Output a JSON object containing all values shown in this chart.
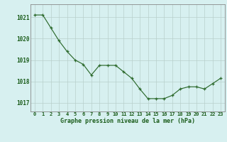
{
  "x": [
    0,
    1,
    2,
    3,
    4,
    5,
    6,
    7,
    8,
    9,
    10,
    11,
    12,
    13,
    14,
    15,
    16,
    17,
    18,
    19,
    20,
    21,
    22,
    23
  ],
  "y": [
    1021.1,
    1021.1,
    1020.5,
    1019.9,
    1019.4,
    1019.0,
    1018.8,
    1018.3,
    1018.75,
    1018.75,
    1018.75,
    1018.45,
    1018.15,
    1017.65,
    1017.2,
    1017.2,
    1017.2,
    1017.35,
    1017.65,
    1017.75,
    1017.75,
    1017.65,
    1017.9,
    1018.15
  ],
  "line_color": "#2d6a2d",
  "marker": "+",
  "marker_color": "#2d6a2d",
  "background_color": "#d7f0f0",
  "grid_color": "#b8d0cc",
  "xlabel": "Graphe pression niveau de la mer (hPa)",
  "xlabel_color": "#1a5c1a",
  "tick_label_color": "#1a5c1a",
  "ylim": [
    1016.6,
    1021.6
  ],
  "xlim": [
    -0.5,
    23.5
  ],
  "yticks": [
    1017,
    1018,
    1019,
    1020,
    1021
  ],
  "xticks": [
    0,
    1,
    2,
    3,
    4,
    5,
    6,
    7,
    8,
    9,
    10,
    11,
    12,
    13,
    14,
    15,
    16,
    17,
    18,
    19,
    20,
    21,
    22,
    23
  ],
  "xtick_labels": [
    "0",
    "1",
    "2",
    "3",
    "4",
    "5",
    "6",
    "7",
    "8",
    "9",
    "10",
    "11",
    "12",
    "13",
    "14",
    "15",
    "16",
    "17",
    "18",
    "19",
    "20",
    "21",
    "22",
    "23"
  ]
}
